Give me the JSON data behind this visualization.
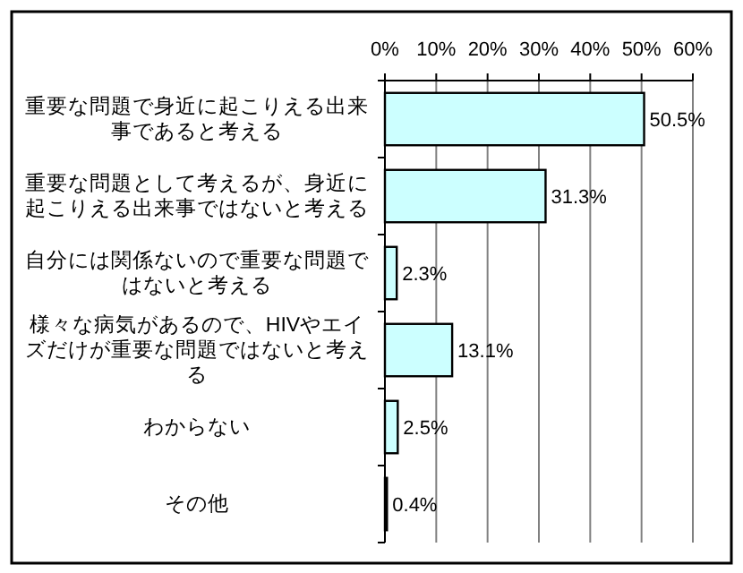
{
  "chart_data": {
    "type": "bar",
    "orientation": "horizontal",
    "categories": [
      "重要な問題で身近に起こりえる出来事であると考える",
      "重要な問題として考えるが、身近に起こりえる出来事ではないと考える",
      "自分には関係ないので重要な問題ではないと考える",
      "様々な病気があるので、HIVやエイズだけが重要な問題ではないと考える",
      "わからない",
      "その他"
    ],
    "values": [
      50.5,
      31.3,
      2.3,
      13.1,
      2.5,
      0.4
    ],
    "value_labels": [
      "50.5%",
      "31.3%",
      "2.3%",
      "13.1%",
      "2.5%",
      "0.4%"
    ],
    "color": "#ccffff",
    "xlim": [
      0,
      60
    ],
    "xticks": [
      {
        "value": 0,
        "label": "0%"
      },
      {
        "value": 10,
        "label": "10%"
      },
      {
        "value": 20,
        "label": "20%"
      },
      {
        "value": 30,
        "label": "30%"
      },
      {
        "value": 40,
        "label": "40%"
      },
      {
        "value": 50,
        "label": "50%"
      },
      {
        "value": 60,
        "label": "60%"
      }
    ],
    "grid": "x"
  }
}
